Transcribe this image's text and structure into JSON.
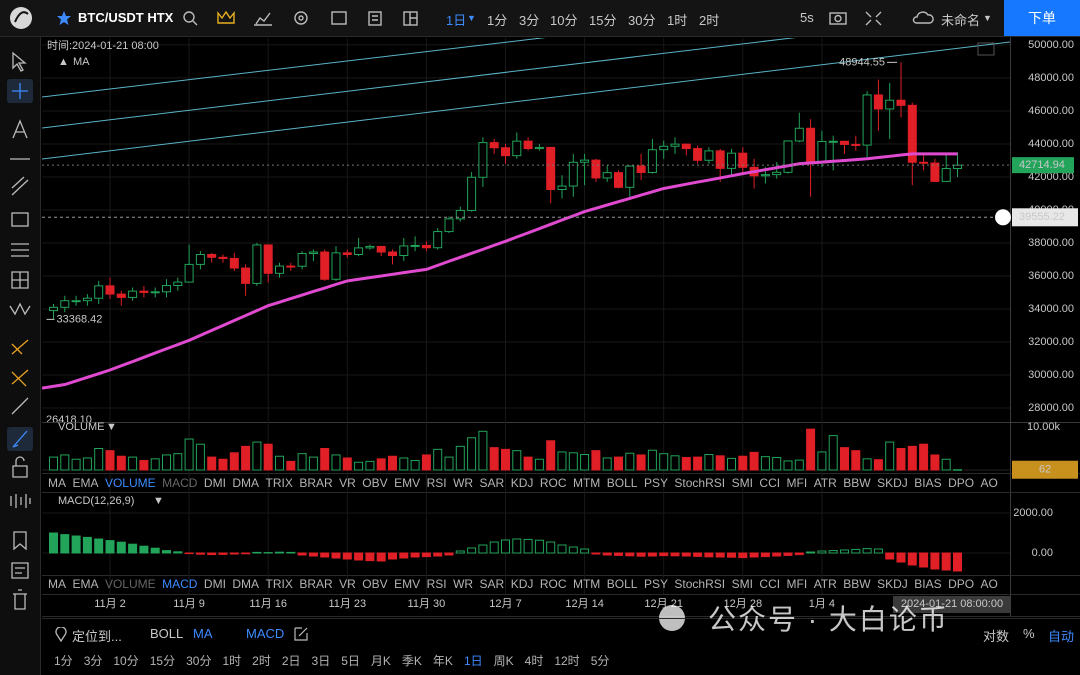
{
  "topbar": {
    "symbol": "BTC/USDT HTX",
    "intervals": [
      "1日",
      "1分",
      "3分",
      "10分",
      "15分",
      "30分",
      "1时",
      "2时"
    ],
    "refresh": "5s",
    "layout_name": "未命名",
    "order_button": "下单"
  },
  "legend": {
    "time": "时间:2024-01-21 08:00",
    "ma": "MA"
  },
  "volume_panel_label": "VOLUME",
  "macd_panel_label": "MACD(12,26,9)",
  "indicator_tabs": [
    "MA",
    "EMA",
    "VOLUME",
    "MACD",
    "DMI",
    "DMA",
    "TRIX",
    "BRAR",
    "VR",
    "OBV",
    "EMV",
    "RSI",
    "WR",
    "SAR",
    "KDJ",
    "ROC",
    "MTM",
    "BOLL",
    "PSY",
    "StochRSI",
    "SMI",
    "CCI",
    "MFI",
    "ATR",
    "BBW",
    "SKDJ",
    "BIAS",
    "DPO",
    "AO"
  ],
  "bottom_bar": {
    "locate": "定位到...",
    "indicators": [
      "BOLL",
      "MA",
      "MACD"
    ],
    "log": "对数",
    "percent": "%",
    "auto": "自动"
  },
  "timeframes": [
    "1分",
    "3分",
    "10分",
    "15分",
    "30分",
    "1时",
    "2时",
    "2日",
    "3日",
    "5日",
    "月K",
    "季K",
    "年K",
    "1日",
    "周K",
    "4时",
    "12时",
    "5分"
  ],
  "watermark": "公众号 · 大白论币",
  "chart_data": {
    "type": "candlestick",
    "up_color": "#22a45a",
    "down_color": "#e01f26",
    "ma_color": "#e04ad0",
    "categories": [
      null,
      null,
      null,
      null,
      null,
      "11月 2",
      null,
      null,
      null,
      null,
      null,
      null,
      "11月 9",
      null,
      null,
      null,
      null,
      null,
      null,
      "11月 16",
      null,
      null,
      null,
      null,
      null,
      null,
      "11月 23",
      null,
      null,
      null,
      null,
      null,
      null,
      "11月 30",
      null,
      null,
      null,
      null,
      null,
      null,
      "12月 7",
      null,
      null,
      null,
      null,
      null,
      null,
      "12月 14",
      null,
      null,
      null,
      null,
      null,
      null,
      "12月 21",
      null,
      null,
      null,
      null,
      null,
      null,
      "12月 28",
      null,
      null,
      null,
      null,
      null,
      null,
      "1月 4",
      null,
      null,
      null,
      null,
      null,
      null,
      null,
      null,
      null,
      null,
      null,
      null
    ],
    "candles": [
      [
        33900,
        34300,
        33368.42,
        34100
      ],
      [
        34100,
        34800,
        33800,
        34500
      ],
      [
        34500,
        34800,
        34200,
        34500
      ],
      [
        34500,
        34900,
        34200,
        34650
      ],
      [
        34650,
        35700,
        34300,
        35400
      ],
      [
        35400,
        35900,
        34600,
        34900
      ],
      [
        34900,
        35100,
        34200,
        34700
      ],
      [
        34700,
        35300,
        34500,
        35080
      ],
      [
        35080,
        35400,
        34700,
        35000
      ],
      [
        35000,
        35300,
        34700,
        35040
      ],
      [
        35040,
        35800,
        34700,
        35420
      ],
      [
        35420,
        35900,
        35100,
        35630
      ],
      [
        35630,
        37900,
        35600,
        36700
      ],
      [
        36700,
        37500,
        36400,
        37300
      ],
      [
        37300,
        37400,
        36800,
        37130
      ],
      [
        37130,
        37300,
        36800,
        37060
      ],
      [
        37060,
        37400,
        36300,
        36480
      ],
      [
        36480,
        36700,
        34800,
        35550
      ],
      [
        35550,
        38000,
        35400,
        37880
      ],
      [
        37880,
        37900,
        35600,
        36160
      ],
      [
        36160,
        36800,
        35900,
        36600
      ],
      [
        36600,
        36800,
        36300,
        36590
      ],
      [
        36590,
        37500,
        36400,
        37360
      ],
      [
        37360,
        37600,
        36900,
        37450
      ],
      [
        37450,
        37600,
        35700,
        35800
      ],
      [
        35800,
        37800,
        35700,
        37400
      ],
      [
        37400,
        37600,
        37100,
        37300
      ],
      [
        37300,
        38300,
        37200,
        37700
      ],
      [
        37700,
        37900,
        37600,
        37790
      ],
      [
        37790,
        37800,
        37200,
        37450
      ],
      [
        37450,
        37600,
        36700,
        37240
      ],
      [
        37240,
        38300,
        36900,
        37820
      ],
      [
        37820,
        38400,
        37500,
        37850
      ],
      [
        37850,
        38100,
        37500,
        37710
      ],
      [
        37710,
        38900,
        37600,
        38690
      ],
      [
        38690,
        39600,
        38600,
        39460
      ],
      [
        39460,
        40200,
        39300,
        39970
      ],
      [
        39970,
        42300,
        39900,
        41980
      ],
      [
        41980,
        44400,
        41400,
        44080
      ],
      [
        44080,
        44300,
        43400,
        43770
      ],
      [
        43770,
        44000,
        42800,
        43290
      ],
      [
        43290,
        44700,
        43100,
        44170
      ],
      [
        44170,
        44400,
        43600,
        43720
      ],
      [
        43720,
        44000,
        43600,
        43790
      ],
      [
        43790,
        43800,
        40400,
        41240
      ],
      [
        41240,
        42100,
        40700,
        41450
      ],
      [
        41450,
        43400,
        40800,
        42890
      ],
      [
        42890,
        43400,
        41500,
        43020
      ],
      [
        43020,
        43100,
        41700,
        41940
      ],
      [
        41940,
        42700,
        41700,
        42260
      ],
      [
        42260,
        42400,
        41300,
        41370
      ],
      [
        41370,
        42700,
        40600,
        42660
      ],
      [
        42660,
        43400,
        41800,
        42270
      ],
      [
        42270,
        44300,
        42200,
        43650
      ],
      [
        43650,
        44200,
        43100,
        43860
      ],
      [
        43860,
        44400,
        43400,
        43990
      ],
      [
        43990,
        44000,
        43300,
        43720
      ],
      [
        43720,
        43900,
        42800,
        43010
      ],
      [
        43010,
        43800,
        42800,
        43580
      ],
      [
        43580,
        43700,
        41700,
        42520
      ],
      [
        42520,
        43700,
        42100,
        43440
      ],
      [
        43440,
        43800,
        42300,
        42580
      ],
      [
        42580,
        43100,
        41300,
        42070
      ],
      [
        42070,
        42600,
        41600,
        42140
      ],
      [
        42140,
        42900,
        41900,
        42280
      ],
      [
        42280,
        44200,
        42200,
        44180
      ],
      [
        44180,
        45900,
        44100,
        44950
      ],
      [
        44950,
        45500,
        40800,
        42850
      ],
      [
        42850,
        44800,
        42600,
        44150
      ],
      [
        44150,
        44500,
        42400,
        44160
      ],
      [
        44160,
        44200,
        43400,
        43970
      ],
      [
        43970,
        44500,
        43600,
        43930
      ],
      [
        43930,
        47200,
        43200,
        46970
      ],
      [
        46970,
        47900,
        44800,
        46120
      ],
      [
        46120,
        47700,
        44300,
        46650
      ],
      [
        46650,
        48944.55,
        45600,
        46340
      ],
      [
        46340,
        46500,
        41500,
        42890
      ],
      [
        42890,
        43300,
        42400,
        42840
      ],
      [
        42840,
        43100,
        41700,
        41730
      ],
      [
        41730,
        43400,
        41700,
        42510
      ],
      [
        42510,
        43500,
        42000,
        42714.94
      ]
    ],
    "ma": [
      29200,
      29420,
      29640,
      29860,
      30080,
      30300,
      30560,
      30810,
      31070,
      31330,
      31590,
      31840,
      32100,
      32400,
      32700,
      33000,
      33300,
      33600,
      33900,
      34200,
      34410,
      34630,
      34840,
      35060,
      35270,
      35490,
      35700,
      35800,
      35900,
      36000,
      36100,
      36200,
      36300,
      36400,
      36640,
      36890,
      37130,
      37370,
      37610,
      37860,
      38100,
      38360,
      38610,
      38870,
      39130,
      39390,
      39640,
      39900,
      40100,
      40300,
      40500,
      40700,
      40900,
      41100,
      41300,
      41430,
      41560,
      41690,
      41810,
      41940,
      42070,
      42200,
      42320,
      42440,
      42560,
      42680,
      42800,
      42850,
      42900,
      42950,
      43000,
      43050,
      43100,
      43180,
      43250,
      43330,
      43400,
      43400,
      43400,
      43400,
      43400
    ],
    "ylim": [
      27150,
      50420
    ],
    "yticks": [
      {
        "value": 28000,
        "label": "28000.00"
      },
      {
        "value": 30000,
        "label": "30000.00"
      },
      {
        "value": 32000,
        "label": "32000.00"
      },
      {
        "value": 34000,
        "label": "34000.00"
      },
      {
        "value": 36000,
        "label": "36000.00"
      },
      {
        "value": 38000,
        "label": "38000.00"
      },
      {
        "value": 40000,
        "label": "40000.00"
      },
      {
        "value": 42000,
        "label": "42000.00"
      },
      {
        "value": 44000,
        "label": "44000.00"
      },
      {
        "value": 46000,
        "label": "46000.00"
      },
      {
        "value": 48000,
        "label": "48000.00"
      },
      {
        "value": 50000,
        "label": "50000.00"
      }
    ],
    "annotations": [
      {
        "value": 26418.1,
        "label": "26418.10"
      }
    ],
    "crosshair": {
      "price": 39555.22,
      "time": "2024-01-21 08:00:00"
    },
    "volume": {
      "values": [
        3000,
        3500,
        2500,
        2800,
        5000,
        4500,
        3200,
        3000,
        2200,
        2600,
        3500,
        3800,
        7200,
        6000,
        3000,
        2500,
        4000,
        5500,
        6500,
        6000,
        3200,
        2000,
        3800,
        3000,
        5000,
        3500,
        2800,
        1800,
        2000,
        2600,
        3200,
        2800,
        2200,
        3500,
        4800,
        3000,
        5500,
        7500,
        9000,
        5200,
        4800,
        4500,
        3000,
        2500,
        6800,
        4200,
        4000,
        3600,
        4500,
        2800,
        3000,
        3900,
        3500,
        4600,
        3800,
        3300,
        2900,
        3000,
        3600,
        3300,
        2700,
        3200,
        4100,
        3100,
        2900,
        2100,
        2300,
        9500,
        4200,
        8000,
        5200,
        4500,
        2600,
        2400,
        6500,
        5000,
        5500,
        6000,
        3500,
        2500,
        62
      ],
      "ylim": [
        0,
        10000
      ],
      "yticks": [
        {
          "value": 10000,
          "label": "10.00k"
        }
      ]
    },
    "macd": {
      "hist": [
        1000,
        920,
        850,
        780,
        700,
        620,
        540,
        440,
        340,
        240,
        120,
        60,
        -30,
        -60,
        -80,
        -70,
        -50,
        -40,
        30,
        20,
        40,
        30,
        -100,
        -150,
        -200,
        -250,
        -300,
        -350,
        -380,
        -400,
        -300,
        -250,
        -200,
        -180,
        -150,
        -100,
        100,
        250,
        400,
        550,
        650,
        700,
        680,
        640,
        550,
        400,
        300,
        200,
        -50,
        -100,
        -120,
        -140,
        -160,
        -150,
        -130,
        -140,
        -150,
        -170,
        -190,
        -200,
        -210,
        -230,
        -200,
        -180,
        -150,
        -120,
        -80,
        50,
        100,
        120,
        150,
        180,
        220,
        200,
        -300,
        -450,
        -600,
        -700,
        -800,
        -850,
        -900
      ],
      "ylim": [
        -1100,
        3050
      ],
      "yticks": [
        {
          "value": 2000,
          "label": "2000.00"
        },
        {
          "value": 0,
          "label": "0.00"
        }
      ]
    }
  }
}
